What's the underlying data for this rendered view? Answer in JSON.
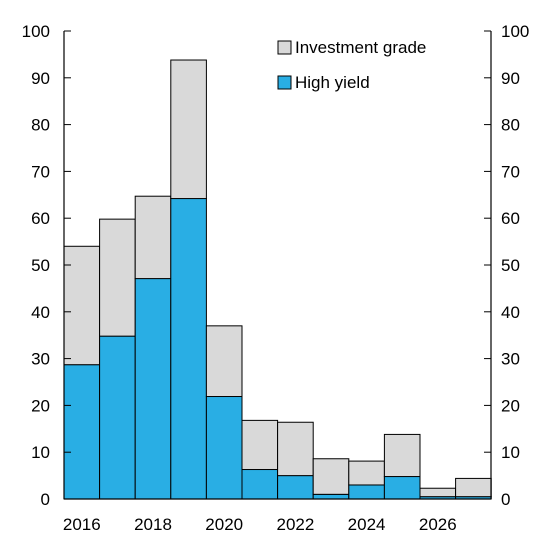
{
  "chart_data": {
    "type": "bar",
    "stacked": true,
    "x": [
      2016,
      2017,
      2018,
      2019,
      2020,
      2021,
      2022,
      2023,
      2024,
      2025,
      2026,
      2027
    ],
    "x_tick_labels": [
      "2016",
      "2018",
      "2020",
      "2022",
      "2024",
      "2026"
    ],
    "series": [
      {
        "name": "High yield",
        "color": "#29aee4",
        "values": [
          28.7,
          34.8,
          47.1,
          64.2,
          21.9,
          6.3,
          5.0,
          1.0,
          3.0,
          4.8,
          0.5,
          0.5
        ]
      },
      {
        "name": "Investment grade",
        "color": "#d9d9d9",
        "values": [
          25.3,
          25.0,
          17.6,
          29.6,
          15.1,
          10.5,
          11.4,
          7.6,
          5.1,
          9.0,
          1.8,
          3.9
        ]
      }
    ],
    "totals": [
      54.0,
      59.8,
      64.7,
      93.8,
      37.0,
      16.8,
      16.4,
      8.6,
      8.1,
      13.8,
      2.3,
      4.4
    ],
    "ylim": [
      0,
      100
    ],
    "y_ticks": [
      "0",
      "10",
      "20",
      "30",
      "40",
      "50",
      "60",
      "70",
      "80",
      "90",
      "100"
    ],
    "y_axis_sides": "left and right",
    "legend": [
      "Investment grade",
      "High yield"
    ],
    "legend_position": "top-right",
    "grid": false
  }
}
